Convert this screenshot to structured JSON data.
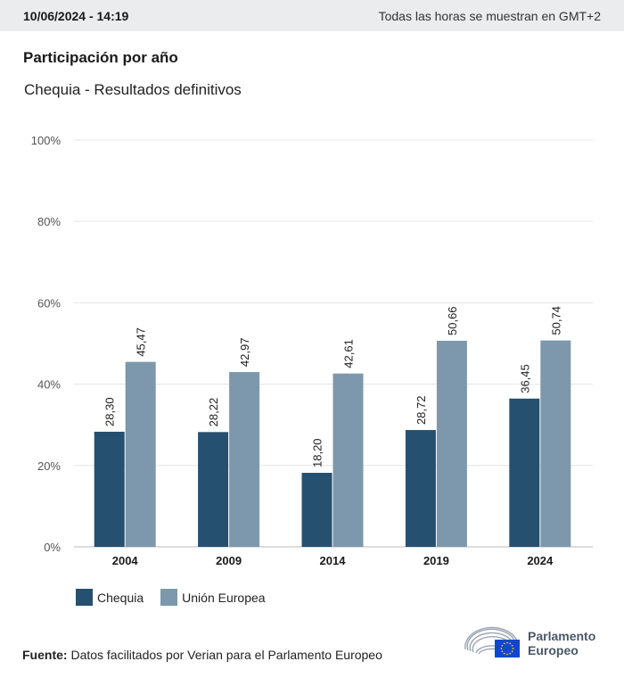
{
  "header": {
    "datetime": "10/06/2024 - 14:19",
    "timezone_note": "Todas las horas se muestran en GMT+2"
  },
  "chart_title": "Participación por año",
  "chart_subtitle": "Chequia - Resultados definitivos",
  "chart_data": {
    "type": "bar",
    "categories": [
      "2004",
      "2009",
      "2014",
      "2019",
      "2024"
    ],
    "series": [
      {
        "name": "Chequia",
        "values": [
          28.3,
          28.22,
          18.2,
          28.72,
          36.45
        ],
        "labels": [
          "28,30",
          "28,22",
          "18,20",
          "28,72",
          "36,45"
        ],
        "color": "#26506f"
      },
      {
        "name": "Unión Europea",
        "values": [
          45.47,
          42.97,
          42.61,
          50.66,
          50.74
        ],
        "labels": [
          "45,47",
          "42,97",
          "42,61",
          "50,66",
          "50,74"
        ],
        "color": "#7d98ac"
      }
    ],
    "ylim": [
      0,
      100
    ],
    "yticks": [
      0,
      20,
      40,
      60,
      80,
      100
    ],
    "ytick_labels": [
      "0%",
      "20%",
      "40%",
      "60%",
      "80%",
      "100%"
    ],
    "grid": true,
    "legend_placement": "bottom-left"
  },
  "footer": {
    "source_label": "Fuente:",
    "source_text": "Datos facilitados por Verian para el Parlamento Europeo"
  },
  "logo": {
    "line1": "Parlamento",
    "line2": "Europeo",
    "icon": "european-parliament-logo-icon"
  },
  "colors": {
    "topbar_bg": "#ebeced",
    "grid": "#e3e5e8",
    "axis": "#bbbbbb",
    "eu_blue": "#0e47cb",
    "eu_yellow": "#ffcc00"
  }
}
